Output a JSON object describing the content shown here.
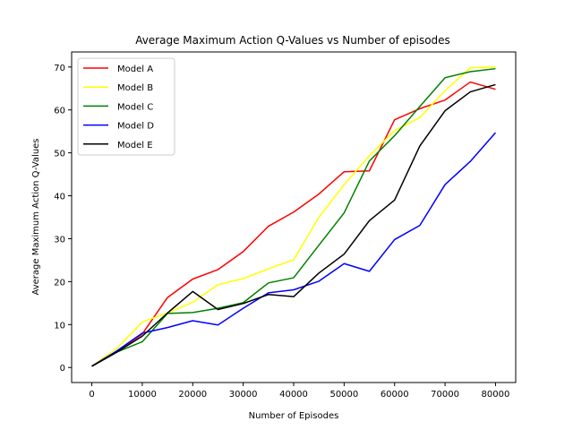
{
  "chart_data": {
    "type": "line",
    "title": "Average Maximum Action Q-Values vs Number of episodes",
    "xlabel": "Number of Episodes",
    "ylabel": "Average Maximum Action Q-Values",
    "xlim": [
      -4000,
      84000
    ],
    "ylim": [
      -3.5,
      73.5
    ],
    "xticks": [
      0,
      10000,
      20000,
      30000,
      40000,
      50000,
      60000,
      70000,
      80000
    ],
    "yticks": [
      0,
      10,
      20,
      30,
      40,
      50,
      60,
      70
    ],
    "grid": false,
    "legend_position": "top-left",
    "x": [
      0,
      5000,
      10000,
      15000,
      20000,
      25000,
      30000,
      35000,
      40000,
      45000,
      50000,
      55000,
      60000,
      65000,
      70000,
      75000,
      80000
    ],
    "series": [
      {
        "name": "Model A",
        "color": "#ff0000",
        "values": [
          0.3,
          3.8,
          7.8,
          16.3,
          20.6,
          22.8,
          27,
          32.9,
          36.2,
          40.4,
          45.6,
          45.8,
          57.7,
          60.3,
          62.3,
          66.5,
          64.8
        ]
      },
      {
        "name": "Model B",
        "color": "#ffff00",
        "values": [
          0.3,
          4.5,
          10.6,
          12.7,
          15.2,
          19.3,
          20.7,
          23,
          25.1,
          35,
          42.6,
          49.3,
          55.2,
          58.2,
          64.5,
          69.8,
          70
        ]
      },
      {
        "name": "Model C",
        "color": "#008000",
        "values": [
          0.3,
          3.6,
          6,
          12.6,
          12.8,
          13.8,
          15.1,
          19.7,
          20.9,
          28.5,
          36,
          48.1,
          54,
          60.8,
          67.5,
          68.9,
          69.6
        ]
      },
      {
        "name": "Model D",
        "color": "#0000ff",
        "values": [
          0.3,
          3.9,
          8,
          9.3,
          10.9,
          9.9,
          13.8,
          17.4,
          18.1,
          20.1,
          24.2,
          22.4,
          29.8,
          33.1,
          42.6,
          48,
          54.7
        ]
      },
      {
        "name": "Model E",
        "color": "#000000",
        "values": [
          0.3,
          3.6,
          7.3,
          12.7,
          17.7,
          13.5,
          14.9,
          17,
          16.5,
          22,
          26.4,
          34.2,
          39,
          51.6,
          59.8,
          64.2,
          65.9
        ]
      }
    ]
  }
}
